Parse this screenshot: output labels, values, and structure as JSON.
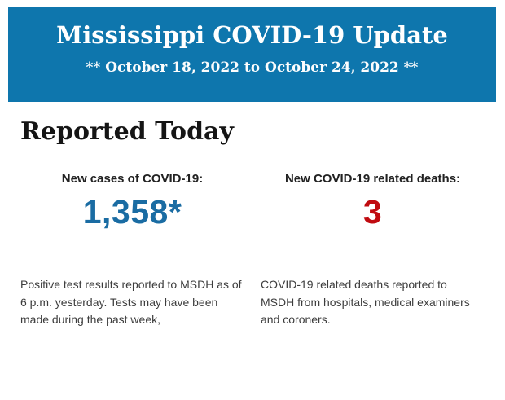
{
  "colors": {
    "header_bg": "#0e76ad",
    "header_text": "#ffffff",
    "page_bg": "#ffffff",
    "section_title_text": "#151515",
    "label_text": "#222222",
    "cases_number": "#1a6ca3",
    "deaths_number": "#c00b10",
    "body_text": "#3d3d3d"
  },
  "header": {
    "title": "Mississippi COVID-19 Update",
    "date_range": "** October 18, 2022 to October 24, 2022 **"
  },
  "main": {
    "section_title": "Reported Today",
    "stats": [
      {
        "label": "New cases of COVID-19:",
        "value": "1,358*",
        "description": "Positive test results reported to MSDH as of 6 p.m. yesterday. Tests may have been made during the past week,"
      },
      {
        "label": "New COVID-19 related deaths:",
        "value": "3",
        "description": "COVID-19 related deaths reported to MSDH from hospitals, medical examiners and coroners."
      }
    ]
  }
}
